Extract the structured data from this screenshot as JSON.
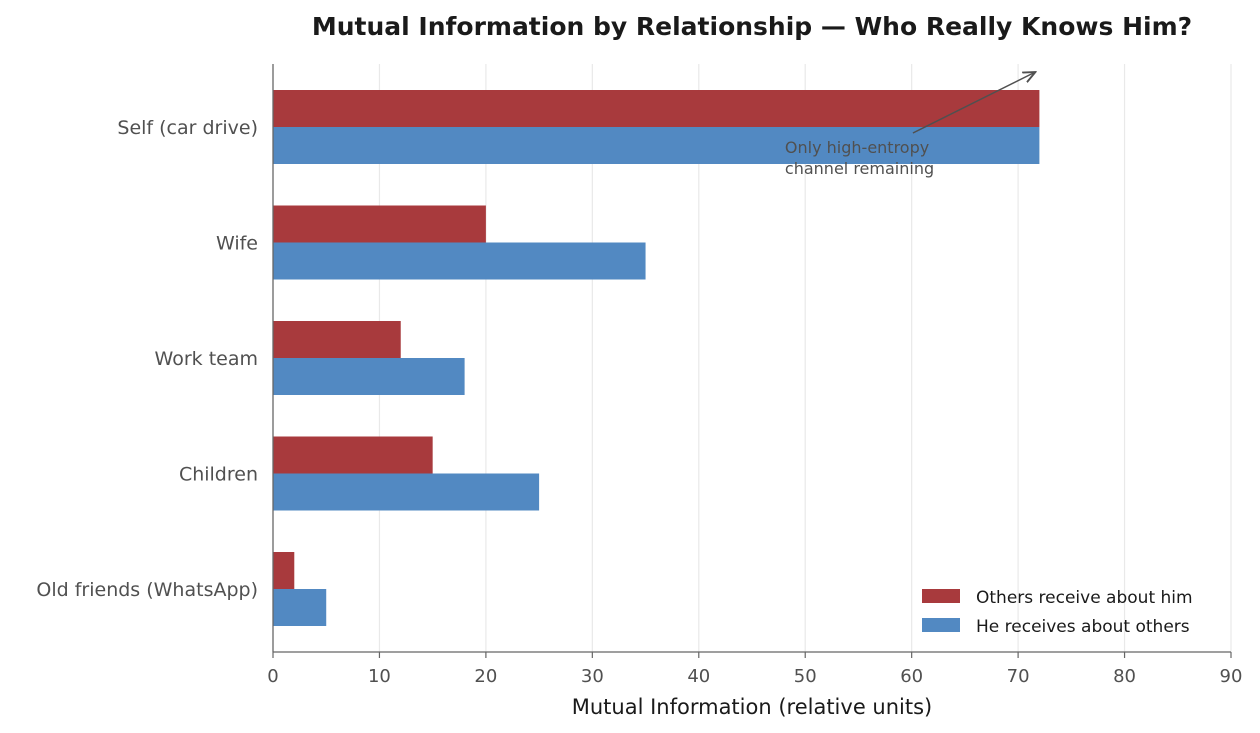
{
  "chart_data": {
    "type": "bar",
    "orientation": "horizontal",
    "title": "Mutual Information by Relationship — Who Really Knows Him?",
    "xlabel": "Mutual Information (relative units)",
    "ylabel": "",
    "xlim": [
      0,
      90
    ],
    "xticks": [
      0,
      10,
      20,
      30,
      40,
      50,
      60,
      70,
      80,
      90
    ],
    "grid": "vertical",
    "legend_position": "bottom-right",
    "categories": [
      "Self (car drive)",
      "Wife",
      "Work team",
      "Children",
      "Old friends (WhatsApp)"
    ],
    "series": [
      {
        "name": "Others receive about him",
        "color": "#a83a3d",
        "values": [
          72,
          20,
          12,
          15,
          2
        ]
      },
      {
        "name": "He receives about others",
        "color": "#5289c2",
        "values": [
          72,
          35,
          18,
          25,
          5
        ]
      }
    ],
    "annotations": [
      {
        "text_lines": [
          "Only high-entropy",
          "channel remaining"
        ],
        "text_anchor_value": [
          48,
          "Self (car drive)"
        ],
        "arrow_target_value": [
          72,
          "Self (car drive)"
        ]
      }
    ]
  }
}
